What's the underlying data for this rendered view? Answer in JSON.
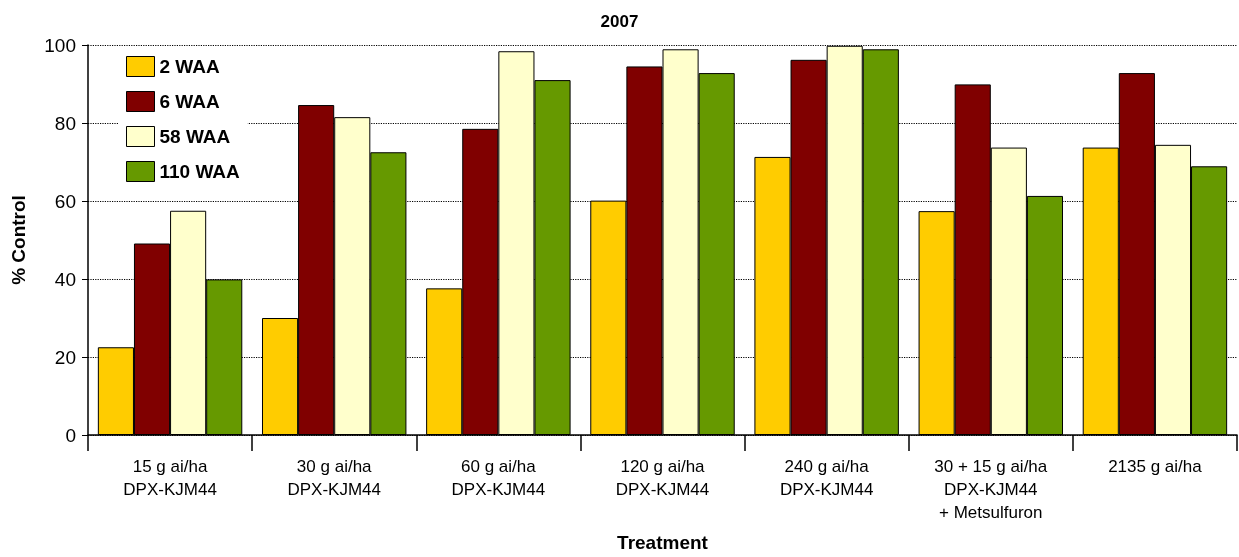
{
  "chart_data": {
    "type": "bar",
    "title": "2007",
    "xlabel": "Treatment",
    "ylabel": "% Control",
    "categories": [
      "15 g ai/ha\nDPX-KJM44",
      "30 g ai/ha\nDPX-KJM44",
      "60 g ai/ha\nDPX-KJM44",
      "120 g ai/ha\nDPX-KJM44",
      "240 g ai/ha\nDPX-KJM44",
      "30 + 15 g ai/ha\nDPX-KJM44\n+ Metsulfuron",
      "2135 g ai/ha"
    ],
    "series": [
      {
        "name": "2 WAA",
        "color": "#ffcc00",
        "values": [
          22.5,
          30,
          37.6,
          60.1,
          71.3,
          57.4,
          73.7
        ]
      },
      {
        "name": "6 WAA",
        "color": "#800000",
        "values": [
          49.1,
          84.6,
          78.5,
          94.5,
          96.2,
          89.9,
          92.8
        ]
      },
      {
        "name": "58 WAA",
        "color": "#ffffcc",
        "values": [
          57.5,
          81.5,
          98.4,
          98.9,
          99.8,
          73.7,
          74.4
        ]
      },
      {
        "name": "110 WAA",
        "color": "#669900",
        "values": [
          39.9,
          72.5,
          91,
          92.8,
          98.9,
          61.3,
          68.9
        ]
      }
    ],
    "ylim": [
      0,
      100
    ],
    "yticks": [
      0,
      20,
      40,
      60,
      80,
      100
    ],
    "grid": "y",
    "legend": "top left"
  }
}
